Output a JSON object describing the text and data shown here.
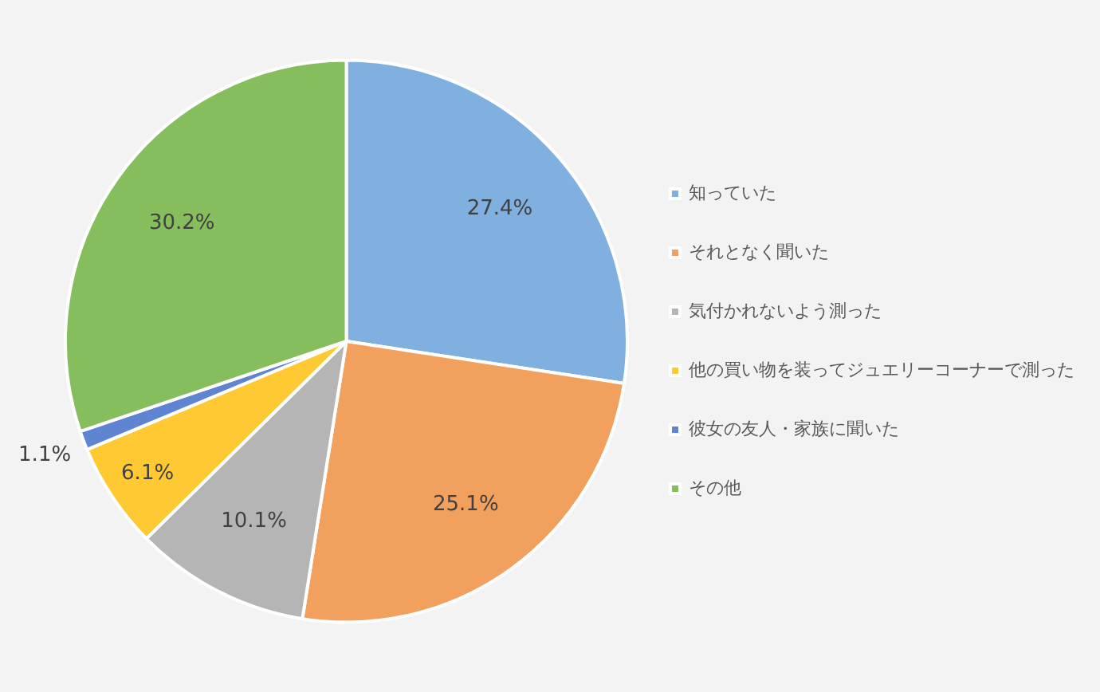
{
  "chart_data": {
    "type": "pie",
    "categories": [
      "知っていた",
      "それとなく聞いた",
      "気付かれないよう測った",
      "他の買い物を装ってジュエリーコーナーで測った",
      "彼女の友人・家族に聞いた",
      "その他"
    ],
    "values": [
      27.4,
      25.1,
      10.1,
      6.1,
      1.1,
      30.2
    ],
    "colors": [
      "#7fb0e0",
      "#f2a05e",
      "#b5b5b5",
      "#ffc933",
      "#5f85d2",
      "#86be5e"
    ],
    "value_labels": [
      "27.4%",
      "25.1%",
      "10.1%",
      "6.1%",
      "1.1%",
      "30.2%"
    ],
    "legend": "right"
  }
}
